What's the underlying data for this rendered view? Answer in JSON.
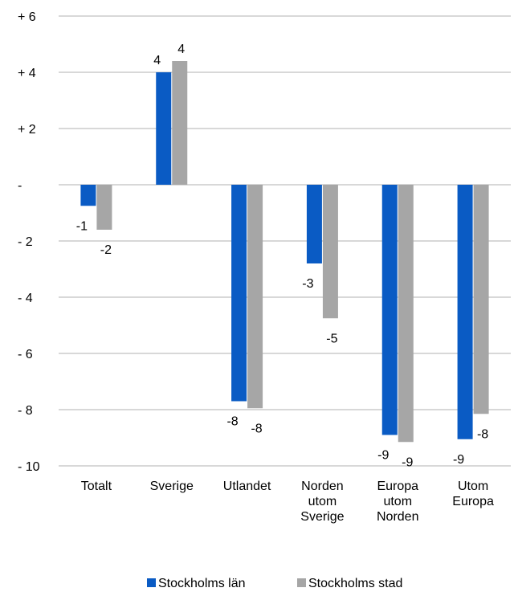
{
  "chart_data": {
    "type": "bar",
    "categories": [
      [
        "Totalt"
      ],
      [
        "Sverige"
      ],
      [
        "Utlandet"
      ],
      [
        "Norden",
        "utom",
        "Sverige"
      ],
      [
        "Europa",
        "utom",
        "Norden"
      ],
      [
        "Utom",
        "Europa"
      ]
    ],
    "series": [
      {
        "name": "Stockholms län",
        "color": "#0a5bc4",
        "values": [
          -0.75,
          4.0,
          -7.7,
          -2.8,
          -8.9,
          -9.05
        ],
        "labels": [
          "-1",
          "4",
          "-8",
          "-3",
          "-9",
          "-9"
        ]
      },
      {
        "name": "Stockholms stad",
        "color": "#a6a6a6",
        "values": [
          -1.6,
          4.4,
          -7.95,
          -4.75,
          -9.15,
          -8.15
        ],
        "labels": [
          "-2",
          "4",
          "-8",
          "-5",
          "-9",
          "-8"
        ]
      }
    ],
    "yticks": [
      6,
      4,
      2,
      0,
      -2,
      -4,
      -6,
      -8,
      -10
    ],
    "ytick_labels": [
      "+ 6",
      "+ 4",
      "+ 2",
      "-",
      "- 2",
      "- 4",
      "- 6",
      "- 8",
      "- 10"
    ],
    "ylim": [
      -10,
      6
    ],
    "grid": true,
    "legend_position": "bottom"
  }
}
